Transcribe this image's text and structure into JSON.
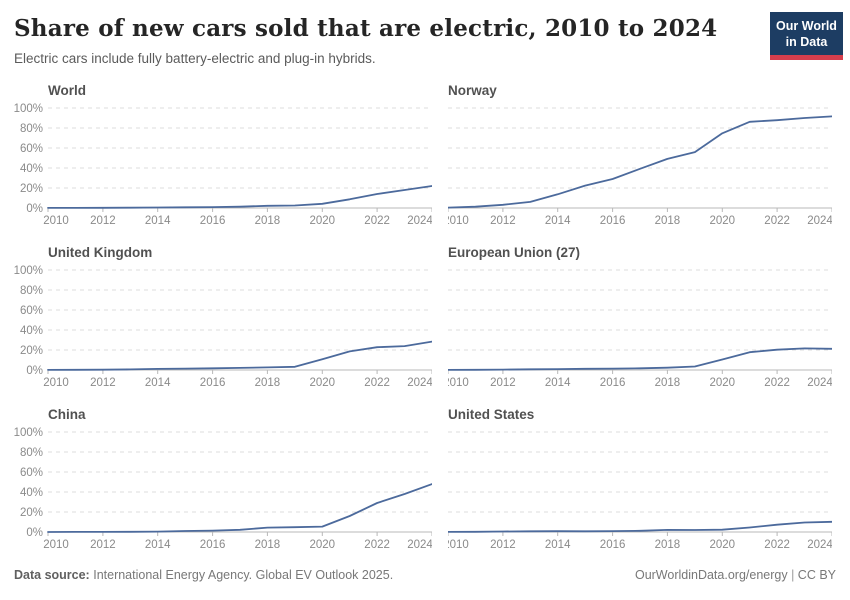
{
  "header": {
    "title": "Share of new cars sold that are electric, 2010 to 2024",
    "subtitle": "Electric cars include fully battery-electric and plug-in hybrids.",
    "logo": {
      "line1": "Our World",
      "line2": "in Data",
      "bg_color": "#1d3d63",
      "accent_color": "#d63e4d"
    }
  },
  "chart_data": {
    "type": "line",
    "layout": "small-multiples 2 columns x 3 rows, shared axes, horizontal dashed grid, y labels on left column only",
    "title": "Share of new cars sold that are electric, 2010 to 2024",
    "x": [
      2010,
      2011,
      2012,
      2013,
      2014,
      2015,
      2016,
      2017,
      2018,
      2019,
      2020,
      2021,
      2022,
      2023,
      2024
    ],
    "x_tick_labels": [
      "2010",
      "2012",
      "2014",
      "2016",
      "2018",
      "2020",
      "2022",
      "2024"
    ],
    "ylim": [
      0,
      100
    ],
    "y_ticks": [
      0,
      20,
      40,
      60,
      80,
      100
    ],
    "y_tick_labels": [
      "0%",
      "20%",
      "40%",
      "60%",
      "80%",
      "100%"
    ],
    "grid": "horizontal-dashed",
    "line_color": "#4c6a9c",
    "series": [
      {
        "name": "World",
        "values": [
          0.1,
          0.1,
          0.2,
          0.3,
          0.5,
          0.7,
          0.9,
          1.3,
          2.2,
          2.5,
          4.2,
          8.7,
          14.0,
          18.0,
          22.0
        ]
      },
      {
        "name": "Norway",
        "values": [
          0.4,
          1.3,
          3.2,
          6.1,
          13.7,
          22.4,
          29.0,
          39.2,
          49.1,
          55.9,
          74.7,
          86.2,
          87.8,
          90.0,
          91.6
        ]
      },
      {
        "name": "United Kingdom",
        "values": [
          0.1,
          0.2,
          0.3,
          0.6,
          1.1,
          1.4,
          1.7,
          2.1,
          2.6,
          3.2,
          10.7,
          18.6,
          22.8,
          23.9,
          28.4
        ]
      },
      {
        "name": "European Union (27)",
        "values": [
          0.1,
          0.2,
          0.4,
          0.7,
          0.9,
          1.2,
          1.4,
          1.7,
          2.3,
          3.5,
          10.5,
          17.8,
          20.3,
          21.6,
          21.2
        ]
      },
      {
        "name": "China",
        "values": [
          0.0,
          0.1,
          0.1,
          0.2,
          0.4,
          1.0,
          1.4,
          2.2,
          4.4,
          4.8,
          5.4,
          16.0,
          29.0,
          38.0,
          47.9
        ]
      },
      {
        "name": "United States",
        "values": [
          0.1,
          0.2,
          0.5,
          0.7,
          0.8,
          0.7,
          0.9,
          1.2,
          2.1,
          2.0,
          2.3,
          4.5,
          7.3,
          9.5,
          10.2
        ]
      }
    ]
  },
  "footer": {
    "datasource_label": "Data source:",
    "datasource_text": "International Energy Agency. Global EV Outlook 2025.",
    "link": "OurWorldinData.org/energy",
    "separator": " | ",
    "license": "CC BY"
  }
}
